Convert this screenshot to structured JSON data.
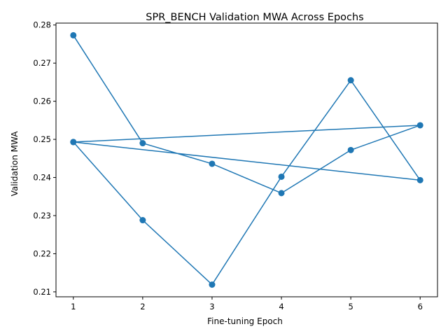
{
  "chart_data": {
    "type": "line",
    "title": "SPR_BENCH Validation MWA Across Epochs",
    "xlabel": "Fine-tuning Epoch",
    "ylabel": "Validation MWA",
    "xlim": [
      0.75,
      6.25
    ],
    "ylim": [
      0.2087,
      0.2805
    ],
    "x_ticks": [
      1,
      2,
      3,
      4,
      5,
      6
    ],
    "y_ticks": [
      0.21,
      0.22,
      0.23,
      0.24,
      0.25,
      0.26,
      0.27,
      0.28
    ],
    "grid": false,
    "line_color": "#1f77b4",
    "series": [
      {
        "x": [
          1,
          2,
          3,
          4,
          5,
          6,
          1,
          2,
          3,
          4,
          5,
          6,
          1
        ],
        "y": [
          0.2773,
          0.249,
          0.2436,
          0.2359,
          0.2472,
          0.2537,
          0.2493,
          0.2288,
          0.2119,
          0.2402,
          0.2655,
          0.2393,
          0.2493
        ]
      }
    ]
  }
}
